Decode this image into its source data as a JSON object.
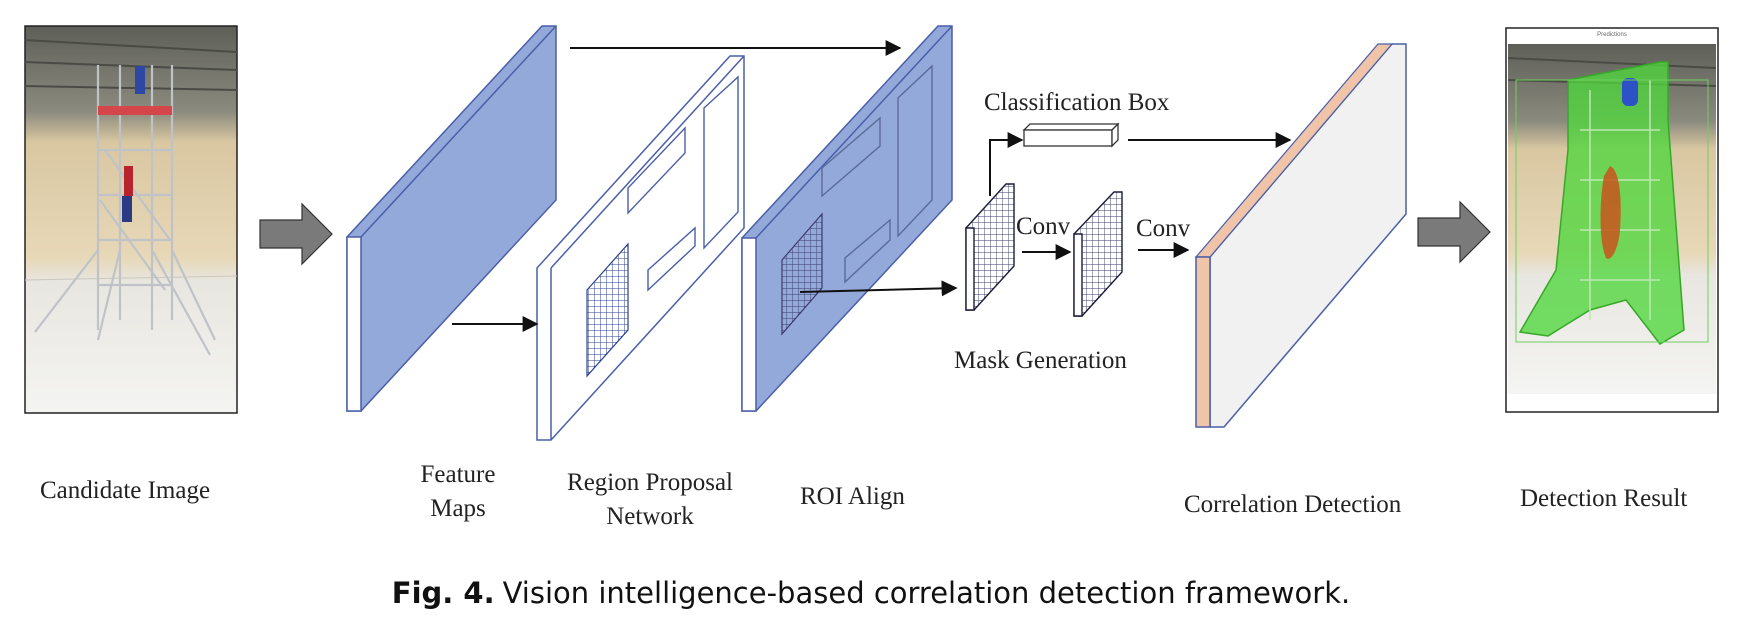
{
  "labels": {
    "candidate_image": "Candidate Image",
    "feature_maps_line1": "Feature",
    "feature_maps_line2": "Maps",
    "rpn_line1": "Region Proposal",
    "rpn_line2": "Network",
    "roi_align": "ROI Align",
    "classification_box": "Classification Box",
    "conv_1": "Conv",
    "conv_2": "Conv",
    "mask_generation": "Mask Generation",
    "correlation_detection": "Correlation Detection",
    "detection_result": "Detection Result",
    "result_image_header": "Predictions"
  },
  "caption": {
    "number": "Fig. 4.",
    "text": "Vision intelligence-based correlation detection framework."
  },
  "colors": {
    "panel_blue": "#93a9da",
    "panel_edge": "#4a5fa8",
    "corr_face": "#f1f1f1",
    "corr_edge": "#f0c4a8",
    "block_arrow": "#7a7a7a",
    "mask_green": "#4fd63c",
    "mask_orange": "#c8531d"
  }
}
